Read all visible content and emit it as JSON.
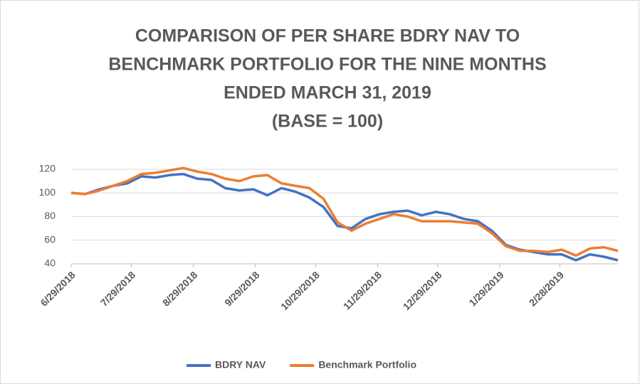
{
  "chart_data": {
    "type": "line",
    "title": [
      "COMPARISON OF PER SHARE BDRY NAV TO",
      "BENCHMARK PORTFOLIO FOR THE NINE MONTHS",
      "ENDED MARCH 31, 2019",
      "(BASE = 100)"
    ],
    "x": [
      "6/29/2018",
      "7/6/2018",
      "7/13/2018",
      "7/20/2018",
      "7/27/2018",
      "8/3/2018",
      "8/10/2018",
      "8/17/2018",
      "8/24/2018",
      "8/31/2018",
      "9/7/2018",
      "9/14/2018",
      "9/21/2018",
      "9/28/2018",
      "10/5/2018",
      "10/12/2018",
      "10/19/2018",
      "10/26/2018",
      "11/2/2018",
      "11/9/2018",
      "11/16/2018",
      "11/23/2018",
      "11/30/2018",
      "12/7/2018",
      "12/14/2018",
      "12/21/2018",
      "12/28/2018",
      "1/4/2019",
      "1/11/2019",
      "1/18/2019",
      "1/25/2019",
      "2/1/2019",
      "2/8/2019",
      "2/15/2019",
      "2/22/2019",
      "3/1/2019",
      "3/8/2019",
      "3/15/2019",
      "3/22/2019",
      "3/29/2019"
    ],
    "series": [
      {
        "name": "BDRY NAV",
        "color": "#4472c4",
        "values": [
          100,
          99,
          103,
          106,
          108,
          114,
          113,
          115,
          116,
          112,
          111,
          104,
          102,
          103,
          98,
          104,
          101,
          96,
          88,
          72,
          70,
          78,
          82,
          84,
          85,
          81,
          84,
          82,
          78,
          76,
          68,
          56,
          52,
          50,
          48,
          48,
          43,
          48,
          46,
          43
        ]
      },
      {
        "name": "Benchmark Portfolio",
        "color": "#ed7d31",
        "values": [
          100,
          99,
          102,
          106,
          110,
          116,
          117,
          119,
          121,
          118,
          116,
          112,
          110,
          114,
          115,
          108,
          106,
          104,
          95,
          75,
          68,
          74,
          78,
          82,
          80,
          76,
          76,
          76,
          75,
          74,
          66,
          55,
          51,
          51,
          50,
          52,
          47,
          53,
          54,
          51
        ]
      }
    ],
    "xlim": [
      "6/29/2018",
      "3/29/2019"
    ],
    "xticks": [
      "6/29/2018",
      "7/29/2018",
      "8/29/2018",
      "9/29/2018",
      "10/29/2018",
      "11/29/2018",
      "12/29/2018",
      "1/29/2019",
      "2/28/2019"
    ],
    "ylim": [
      40,
      120
    ],
    "yticks": [
      40,
      60,
      80,
      100,
      120
    ],
    "grid": true,
    "legend": "bottom"
  }
}
